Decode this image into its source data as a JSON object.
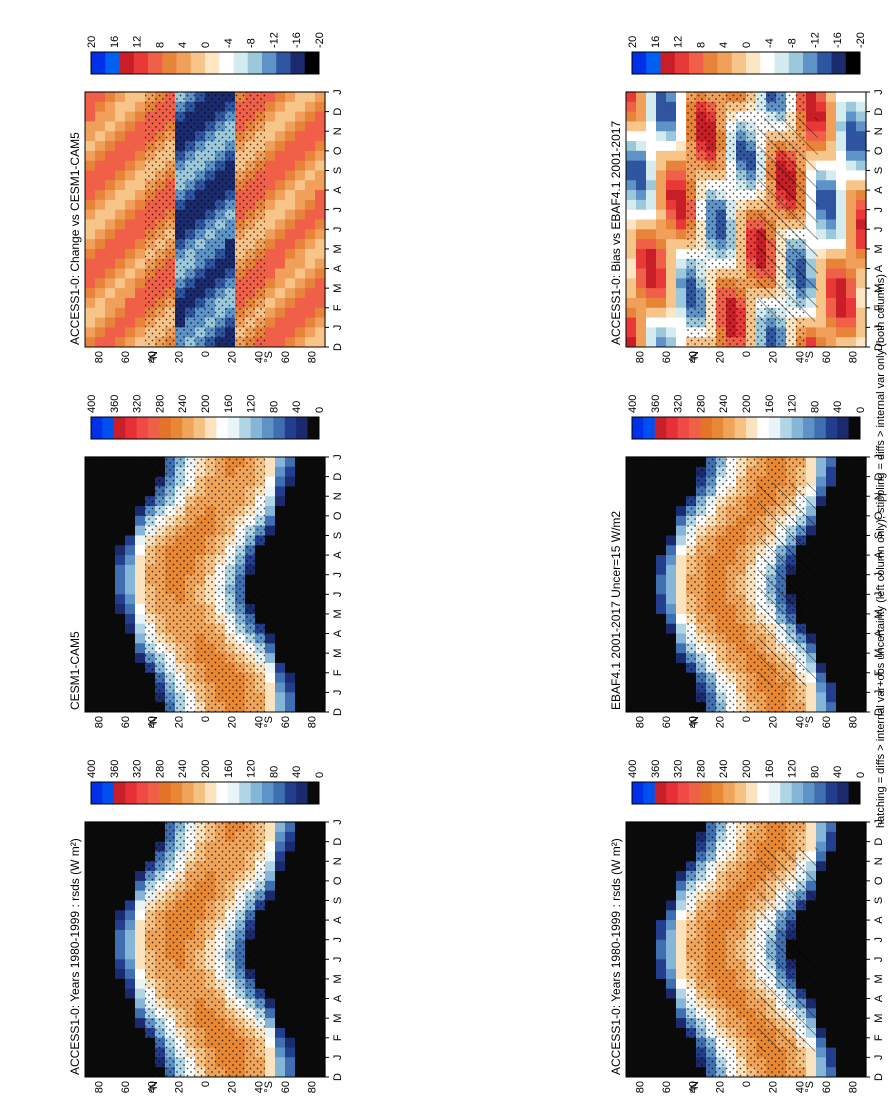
{
  "figure": {
    "footer": "hatching = diffs > internal var+obs uncertainty (left column only); stippling = diffs > internal var only (both columns)"
  },
  "colors": {
    "abs_palette": [
      "#0a0a0a",
      "#1a2a6c",
      "#233e8e",
      "#3f6fb0",
      "#5d93c6",
      "#85b6d8",
      "#b0d6e6",
      "#e8f4f7",
      "#ffffff",
      "#fbe3c0",
      "#f5c284",
      "#f0a45a",
      "#e88835",
      "#e4742a",
      "#f06048",
      "#f04a46",
      "#e82e36",
      "#c8202a",
      "#0050f0",
      "#0030e8"
    ],
    "diff_palette": [
      "#000000",
      "#1a2a6c",
      "#2f55a0",
      "#5d93c6",
      "#9cc8dc",
      "#d4ecf0",
      "#ffffff",
      "#fde6c4",
      "#f7c58a",
      "#f0a05a",
      "#e8843a",
      "#f06048",
      "#e83838",
      "#c81e28",
      "#0060f0",
      "#0030e8"
    ]
  },
  "chart_data": [
    {
      "type": "heatmap",
      "title": "ACCESS1-0: Years 1980-1999 : rsds (W m²)",
      "x": [
        "J",
        "F",
        "M",
        "A",
        "M",
        "J",
        "J",
        "A",
        "S",
        "O",
        "N",
        "D",
        "J"
      ],
      "x_prefix": "D",
      "y": [
        "80",
        "60",
        "40",
        "20",
        "0",
        "20",
        "40",
        "60",
        "80"
      ],
      "y_unit_labels": [
        "°N",
        "°S"
      ],
      "colorbar": [
        "400",
        "360",
        "320",
        "280",
        "240",
        "200",
        "160",
        "120",
        "80",
        "40",
        "0"
      ],
      "overlays": [
        "hatching",
        "stippling"
      ]
    },
    {
      "type": "heatmap",
      "title": "ACCESS1-0: Years 1980-1999 : rsds (W m²)",
      "x": [
        "J",
        "F",
        "M",
        "A",
        "M",
        "J",
        "J",
        "A",
        "S",
        "O",
        "N",
        "D",
        "J"
      ],
      "x_prefix": "D",
      "y": [
        "80",
        "60",
        "40",
        "20",
        "0",
        "20",
        "40",
        "60",
        "80"
      ],
      "y_unit_labels": [
        "°N",
        "°S"
      ],
      "colorbar": [
        "400",
        "360",
        "320",
        "280",
        "240",
        "200",
        "160",
        "120",
        "80",
        "40",
        "0"
      ],
      "overlays": [
        "stippling"
      ]
    },
    {
      "type": "heatmap",
      "title": "EBAF4.1 2001-2017 Uncer=15 W/m2",
      "x": [
        "J",
        "F",
        "M",
        "A",
        "M",
        "J",
        "J",
        "A",
        "S",
        "O",
        "N",
        "D",
        "J"
      ],
      "x_prefix": "D",
      "y": [
        "80",
        "60",
        "40",
        "20",
        "0",
        "20",
        "40",
        "60",
        "80"
      ],
      "y_unit_labels": [
        "°N",
        "°S"
      ],
      "colorbar": [
        "400",
        "360",
        "320",
        "280",
        "240",
        "200",
        "160",
        "120",
        "80",
        "40",
        "0"
      ],
      "overlays": [
        "hatching",
        "stippling"
      ]
    },
    {
      "type": "heatmap",
      "title": "CESM1-CAM5",
      "x": [
        "J",
        "F",
        "M",
        "A",
        "M",
        "J",
        "J",
        "A",
        "S",
        "O",
        "N",
        "D",
        "J"
      ],
      "x_prefix": "D",
      "y": [
        "80",
        "60",
        "40",
        "20",
        "0",
        "20",
        "40",
        "60",
        "80"
      ],
      "y_unit_labels": [
        "°N",
        "°S"
      ],
      "colorbar": [
        "400",
        "360",
        "320",
        "280",
        "240",
        "200",
        "160",
        "120",
        "80",
        "40",
        "0"
      ],
      "overlays": [
        "stippling"
      ]
    },
    {
      "type": "heatmap",
      "title": "ACCESS1-0: Bias vs EBAF4.1 2001-2017",
      "x": [
        "J",
        "F",
        "M",
        "A",
        "M",
        "J",
        "J",
        "A",
        "S",
        "O",
        "N",
        "D",
        "J"
      ],
      "x_prefix": "D",
      "y": [
        "80",
        "60",
        "40",
        "20",
        "0",
        "20",
        "40",
        "60",
        "80"
      ],
      "y_unit_labels": [
        "°N",
        "°S"
      ],
      "colorbar": [
        "20",
        "16",
        "12",
        "8",
        "4",
        "0",
        "-4",
        "-8",
        "-12",
        "-16",
        "-20"
      ],
      "overlays": [
        "hatching",
        "stippling"
      ]
    },
    {
      "type": "heatmap",
      "title": "ACCESS1-0: Change vs CESM1-CAM5",
      "x": [
        "J",
        "F",
        "M",
        "A",
        "M",
        "J",
        "J",
        "A",
        "S",
        "O",
        "N",
        "D",
        "J"
      ],
      "x_prefix": "D",
      "y": [
        "80",
        "60",
        "40",
        "20",
        "0",
        "20",
        "40",
        "60",
        "80"
      ],
      "y_unit_labels": [
        "°N",
        "°S"
      ],
      "colorbar": [
        "20",
        "16",
        "12",
        "8",
        "4",
        "0",
        "-4",
        "-8",
        "-12",
        "-16",
        "-20"
      ],
      "overlays": [
        "stippling"
      ]
    }
  ]
}
